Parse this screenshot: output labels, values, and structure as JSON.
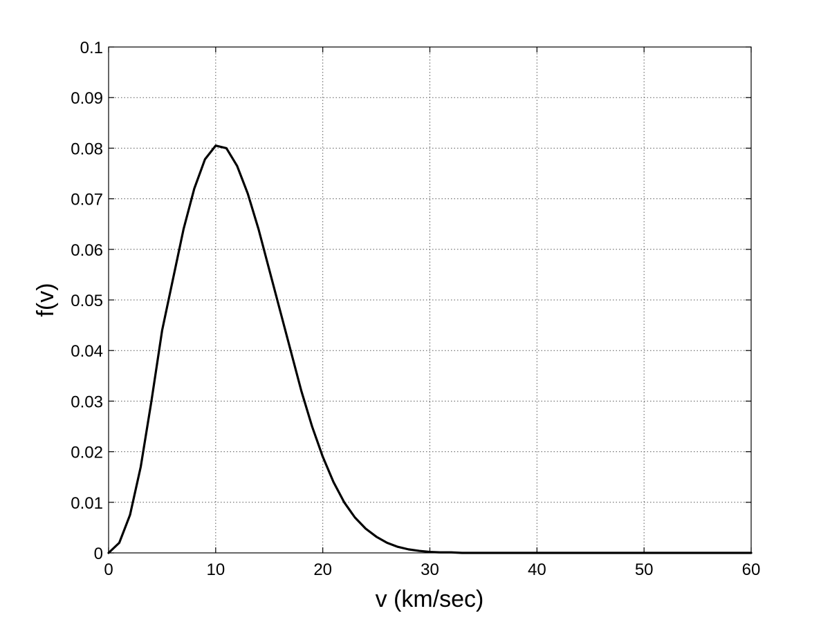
{
  "chart_data": {
    "type": "line",
    "title": "",
    "xlabel": "v (km/sec)",
    "ylabel": "f(v)",
    "xlim": [
      0,
      60
    ],
    "ylim": [
      0,
      0.1
    ],
    "x_ticks": [
      0,
      10,
      20,
      30,
      40,
      50,
      60
    ],
    "x_tick_labels": [
      "0",
      "10",
      "20",
      "30",
      "40",
      "50",
      "60"
    ],
    "y_ticks": [
      0,
      0.01,
      0.02,
      0.03,
      0.04,
      0.05,
      0.06,
      0.07,
      0.08,
      0.09,
      0.1
    ],
    "y_tick_labels": [
      "0",
      "0.01",
      "0.02",
      "0.03",
      "0.04",
      "0.05",
      "0.06",
      "0.07",
      "0.08",
      "0.09",
      "0.1"
    ],
    "grid": true,
    "legend": "none",
    "line_color": "#000000",
    "series": [
      {
        "x": [
          0,
          1,
          2,
          3,
          4,
          5,
          6,
          7,
          8,
          9,
          10,
          11,
          12,
          13,
          14,
          15,
          16,
          17,
          18,
          19,
          20,
          21,
          22,
          23,
          24,
          25,
          26,
          27,
          28,
          29,
          30,
          31,
          32,
          33,
          34,
          35,
          36,
          37,
          38,
          39,
          40,
          41,
          42,
          43,
          44,
          45,
          46,
          47,
          48,
          49,
          50,
          51,
          52,
          53,
          54,
          55,
          56,
          57,
          58,
          59,
          60
        ],
        "values": [
          0,
          0.002,
          0.0075,
          0.017,
          0.03,
          0.044,
          0.054,
          0.064,
          0.072,
          0.0778,
          0.0805,
          0.08,
          0.0765,
          0.071,
          0.064,
          0.056,
          0.048,
          0.04,
          0.032,
          0.025,
          0.019,
          0.014,
          0.01,
          0.007,
          0.0048,
          0.0032,
          0.002,
          0.0012,
          0.0007,
          0.0004,
          0.0002,
          0.0001,
          0.0001,
          0,
          0,
          0,
          0,
          0,
          0,
          0,
          0,
          0,
          0,
          0,
          0,
          0,
          0,
          0,
          0,
          0,
          0,
          0,
          0,
          0,
          0,
          0,
          0,
          0,
          0,
          0,
          0
        ]
      }
    ]
  }
}
